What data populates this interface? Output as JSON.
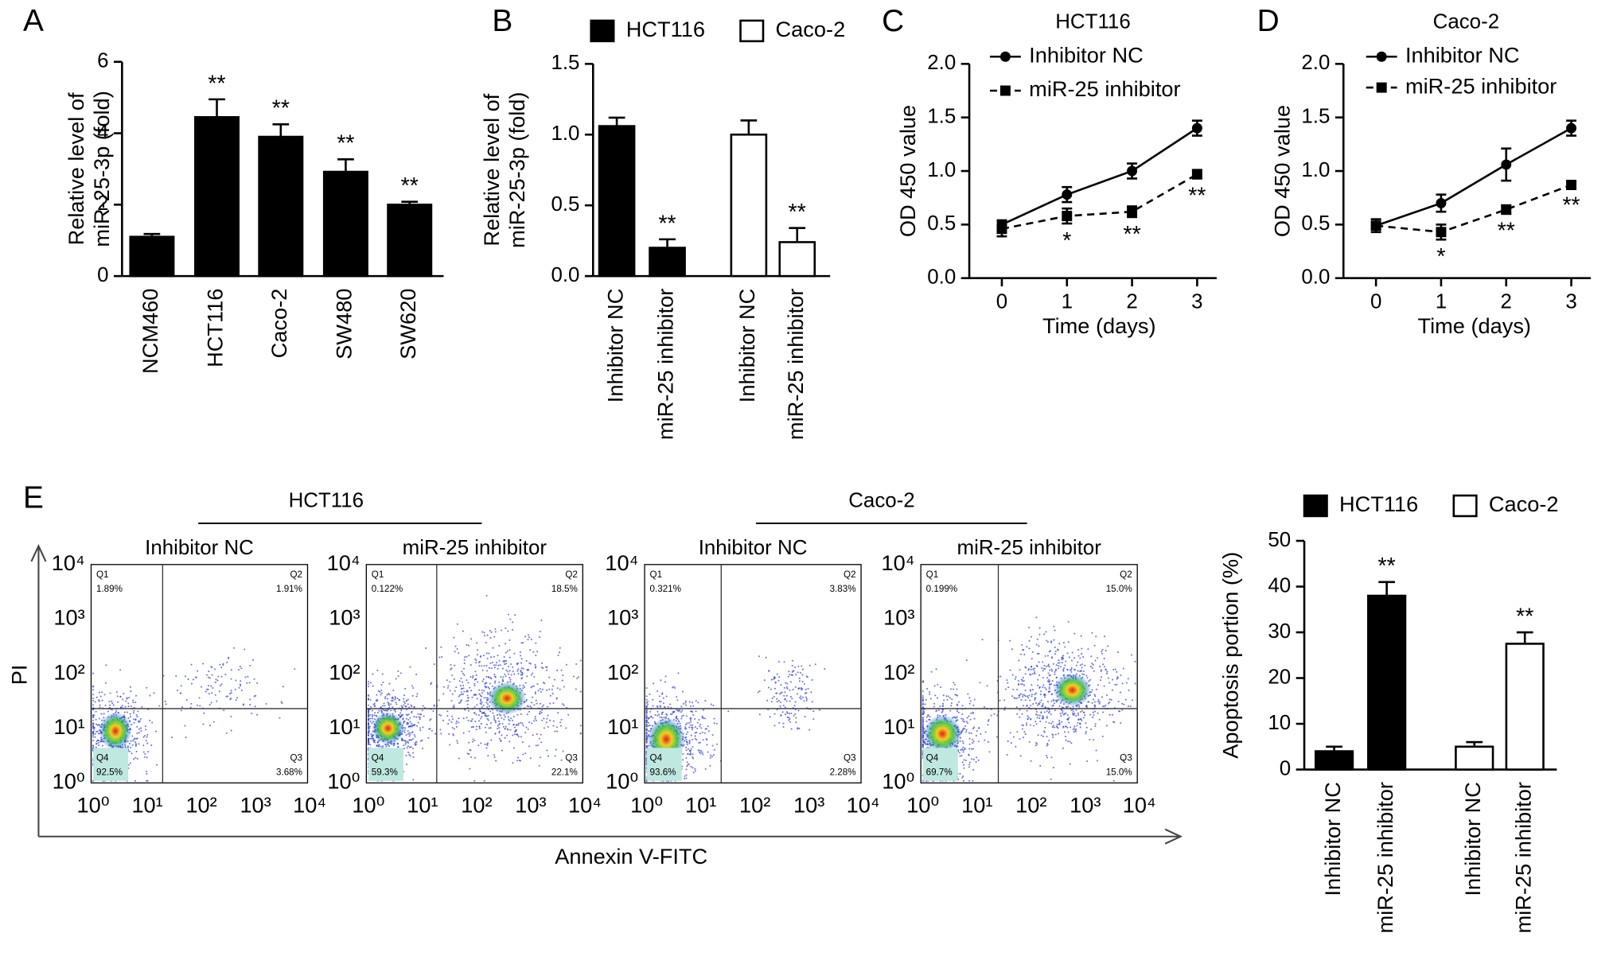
{
  "chart_data": [
    {
      "type": "bar",
      "panel": "A",
      "ylabel": [
        "Relative level of",
        "miR-25-3p (fold)"
      ],
      "categories": [
        "NCM460",
        "HCT116",
        "Caco-2",
        "SW480",
        "SW620"
      ],
      "values": [
        1.1,
        4.45,
        3.9,
        2.92,
        2.0
      ],
      "errors": [
        0.08,
        0.5,
        0.35,
        0.35,
        0.08
      ],
      "annotations": [
        null,
        "**",
        "**",
        "**",
        "**"
      ],
      "color": "#000000",
      "ylim": [
        0,
        6
      ],
      "yticks": [
        0,
        2,
        4,
        6
      ]
    },
    {
      "type": "bar",
      "panel": "B",
      "ylabel": [
        "Relative level of",
        "miR-25-3p (fold)"
      ],
      "categories": [
        "Inhibitor NC",
        "miR-25 inhibitor",
        "Inhibitor NC",
        "miR-25 inhibitor"
      ],
      "series": [
        {
          "name": "HCT116",
          "color": "#000000",
          "values": [
            1.06,
            0.2,
            null,
            null
          ],
          "errors": [
            0.06,
            0.06,
            null,
            null
          ],
          "annotations": [
            null,
            "**",
            null,
            null
          ]
        },
        {
          "name": "Caco-2",
          "color": "#ffffff",
          "values": [
            null,
            null,
            1.0,
            0.24
          ],
          "errors": [
            null,
            null,
            0.1,
            0.1
          ],
          "annotations": [
            null,
            null,
            null,
            "**"
          ]
        }
      ],
      "ylim": [
        0,
        1.5
      ],
      "yticks": [
        {
          "value": 0,
          "label": "0.0"
        },
        0.5,
        {
          "value": 1,
          "label": "1.0"
        },
        1.5
      ]
    },
    {
      "type": "line",
      "panel": "C",
      "title": "HCT116",
      "xlabel": "Time (days)",
      "ylabel": "OD 450 value",
      "x": [
        0,
        1,
        2,
        3
      ],
      "xlim": [
        -0.5,
        3.3
      ],
      "xticks": [
        0,
        1,
        2,
        3
      ],
      "ylim": [
        0,
        2
      ],
      "yticks": [
        {
          "value": 0,
          "label": "0.0"
        },
        0.5,
        {
          "value": 1,
          "label": "1.0"
        },
        1.5,
        {
          "value": 2,
          "label": "2.0"
        }
      ],
      "series": [
        {
          "name": "Inhibitor NC",
          "color": "#000000",
          "style": "solid",
          "marker": "circle",
          "values": [
            0.5,
            0.78,
            1.0,
            1.4
          ],
          "errors": [
            0.04,
            0.07,
            0.07,
            0.07
          ]
        },
        {
          "name": "miR-25 inhibitor",
          "color": "#000000",
          "style": "dashed",
          "marker": "square",
          "values": [
            0.46,
            0.58,
            0.62,
            0.97
          ],
          "errors": [
            0.07,
            0.07,
            0.05,
            0.04
          ],
          "annotations": [
            null,
            "*",
            "**",
            "**"
          ]
        }
      ]
    },
    {
      "type": "line",
      "panel": "D",
      "title": "Caco-2",
      "xlabel": "Time (days)",
      "ylabel": "OD 450 value",
      "x": [
        0,
        1,
        2,
        3
      ],
      "xlim": [
        -0.5,
        3.3
      ],
      "xticks": [
        0,
        1,
        2,
        3
      ],
      "ylim": [
        0,
        2
      ],
      "yticks": [
        {
          "value": 0,
          "label": "0.0"
        },
        0.5,
        {
          "value": 1,
          "label": "1.0"
        },
        1.5,
        {
          "value": 2,
          "label": "2.0"
        }
      ],
      "series": [
        {
          "name": "Inhibitor NC",
          "color": "#000000",
          "style": "solid",
          "marker": "circle",
          "values": [
            0.49,
            0.7,
            1.06,
            1.4
          ],
          "errors": [
            0.06,
            0.08,
            0.15,
            0.07
          ]
        },
        {
          "name": "miR-25 inhibitor",
          "color": "#000000",
          "style": "dashed",
          "marker": "square",
          "values": [
            0.49,
            0.43,
            0.64,
            0.87
          ],
          "errors": [
            0.03,
            0.07,
            0.04,
            0.03
          ],
          "annotations": [
            null,
            "*",
            "**",
            "**"
          ]
        }
      ]
    },
    {
      "type": "flow",
      "panel": "E",
      "ylabel": "PI",
      "xlabel": "Annexin V-FITC",
      "log_scale": true,
      "xlim": [
        1,
        10000
      ],
      "ylim": [
        1,
        10000
      ],
      "xticks": [
        {
          "value": 1,
          "label": "10⁰"
        },
        {
          "value": 10,
          "label": "10¹"
        },
        {
          "value": 100,
          "label": "10²"
        },
        {
          "value": 1000,
          "label": "10³"
        },
        {
          "value": 10000,
          "label": "10⁴"
        }
      ],
      "yticks": [
        {
          "value": 1,
          "label": "10⁰"
        },
        {
          "value": 10,
          "label": "10¹"
        },
        {
          "value": 100,
          "label": "10²"
        },
        {
          "value": 1000,
          "label": "10³"
        },
        {
          "value": 10000,
          "label": "10⁴"
        }
      ],
      "groups": [
        {
          "title": "HCT116",
          "plots": [
            {
              "title": "Inhibitor NC",
              "gate": [
                21,
                23
              ],
              "quadrants": [
                {
                  "name": "Q1",
                  "label": "1.89%"
                },
                {
                  "name": "Q2",
                  "label": "1.91%"
                },
                {
                  "name": "Q3",
                  "label": "3.68%"
                },
                {
                  "name": "Q4",
                  "label": "92.5%"
                }
              ]
            },
            {
              "title": "miR-25 inhibitor",
              "gate": [
                20,
                23
              ],
              "quadrants": [
                {
                  "name": "Q1",
                  "label": "0.122%"
                },
                {
                  "name": "Q2",
                  "label": "18.5%"
                },
                {
                  "name": "Q3",
                  "label": "22.1%"
                },
                {
                  "name": "Q4",
                  "label": "59.3%"
                }
              ]
            }
          ]
        },
        {
          "title": "Caco-2",
          "plots": [
            {
              "title": "Inhibitor NC",
              "gate": [
                26,
                23
              ],
              "quadrants": [
                {
                  "name": "Q1",
                  "label": "0.321%"
                },
                {
                  "name": "Q2",
                  "label": "3.83%"
                },
                {
                  "name": "Q3",
                  "label": "2.28%"
                },
                {
                  "name": "Q4",
                  "label": "93.6%"
                }
              ]
            },
            {
              "title": "miR-25 inhibitor",
              "gate": [
                27,
                23
              ],
              "quadrants": [
                {
                  "name": "Q1",
                  "label": "0.199%"
                },
                {
                  "name": "Q2",
                  "label": "15.0%"
                },
                {
                  "name": "Q3",
                  "label": "15.0%"
                },
                {
                  "name": "Q4",
                  "label": "69.7%"
                }
              ]
            }
          ]
        }
      ]
    },
    {
      "type": "bar",
      "ylabel": "Apoptosis portion (%)",
      "categories": [
        "Inhibitor NC",
        "miR-25 inhibitor",
        "Inhibitor NC",
        "miR-25 inhibitor"
      ],
      "series": [
        {
          "name": "HCT116",
          "color": "#000000",
          "values": [
            4,
            38,
            null,
            null
          ],
          "errors": [
            1,
            3,
            null,
            null
          ],
          "annotations": [
            null,
            "**",
            null,
            null
          ]
        },
        {
          "name": "Caco-2",
          "color": "#ffffff",
          "values": [
            null,
            null,
            5,
            27.5
          ],
          "errors": [
            null,
            null,
            1,
            2.5
          ],
          "annotations": [
            null,
            null,
            null,
            "**"
          ]
        }
      ],
      "ylim": [
        0,
        50
      ],
      "yticks": [
        0,
        10,
        20,
        30,
        40,
        50
      ]
    }
  ]
}
